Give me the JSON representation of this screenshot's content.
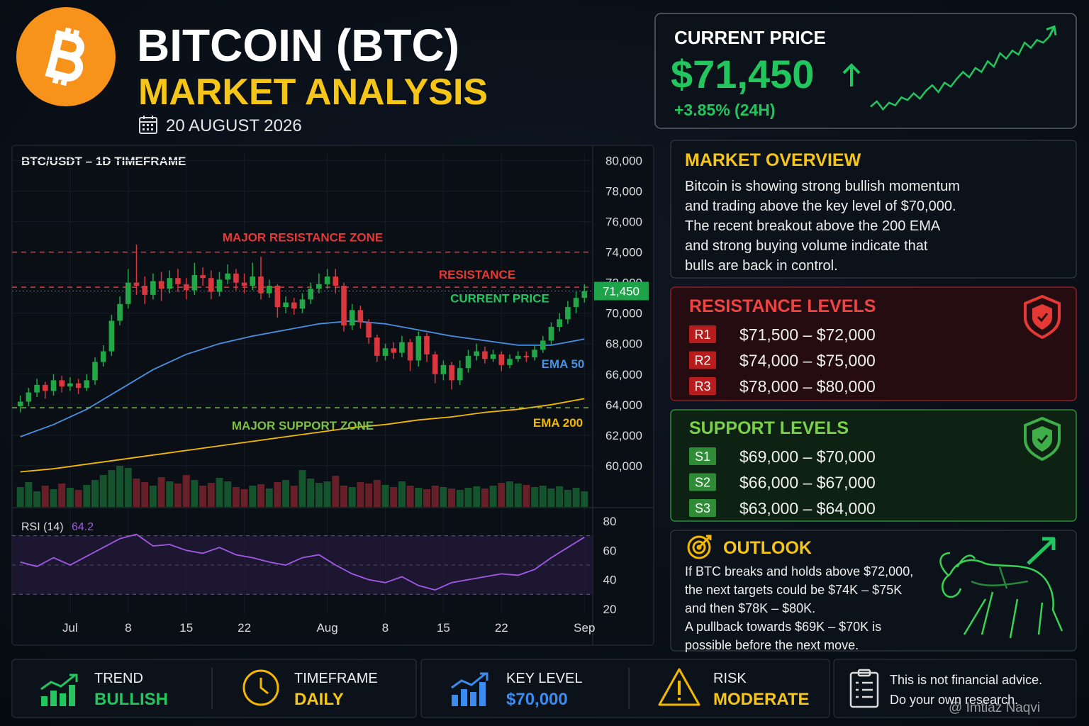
{
  "header": {
    "title": "BITCOIN (BTC)",
    "subtitle": "MARKET ANALYSIS",
    "date": "20 AUGUST 2026"
  },
  "price_card": {
    "label": "CURRENT PRICE",
    "price": "$71,450",
    "change": "+3.85% (24H)",
    "sparkline": {
      "values": [
        66200,
        66600,
        66000,
        66500,
        66300,
        66900,
        66700,
        67200,
        66800,
        67400,
        67800,
        67300,
        68000,
        67700,
        68300,
        68800,
        68400,
        69100,
        68800,
        69600,
        69200,
        70200,
        69800,
        70400,
        70100,
        71000,
        70600,
        71200,
        71000,
        71450
      ],
      "ylim": [
        65800,
        71800
      ],
      "color": "#22c55e"
    }
  },
  "chart_data": {
    "type": "candlestick",
    "title": "BTC/USDT – 1D TIMEFRAME",
    "x": [
      -6,
      -5,
      -4,
      -3,
      -2,
      -1,
      0,
      1,
      2,
      3,
      4,
      5,
      6,
      7,
      8,
      9,
      10,
      11,
      12,
      13,
      14,
      15,
      16,
      17,
      18,
      19,
      20,
      21,
      22,
      23,
      24,
      25,
      26,
      27,
      28,
      29,
      30,
      31,
      32,
      33,
      34,
      35,
      36,
      37,
      38,
      39,
      40,
      41,
      42,
      43,
      44,
      45,
      46,
      47,
      48,
      49,
      50,
      51,
      52,
      53,
      54,
      55,
      56,
      57,
      58,
      59,
      60,
      61,
      62
    ],
    "ohlc": [
      [
        63900,
        64600,
        63500,
        64200
      ],
      [
        64200,
        65100,
        63900,
        64800
      ],
      [
        64800,
        65700,
        64500,
        65300
      ],
      [
        65300,
        65500,
        64400,
        64900
      ],
      [
        64900,
        66000,
        64600,
        65600
      ],
      [
        65600,
        65900,
        64800,
        65200
      ],
      [
        65200,
        65800,
        64900,
        65400
      ],
      [
        65400,
        65700,
        64700,
        65100
      ],
      [
        65100,
        66000,
        64900,
        65600
      ],
      [
        65600,
        67100,
        65300,
        66800
      ],
      [
        66800,
        67900,
        66500,
        67500
      ],
      [
        67500,
        69900,
        67200,
        69500
      ],
      [
        69500,
        71100,
        69200,
        70600
      ],
      [
        70600,
        72900,
        70300,
        72000
      ],
      [
        72000,
        74500,
        71200,
        71800
      ],
      [
        71800,
        72400,
        70600,
        71200
      ],
      [
        71200,
        72600,
        70900,
        72100
      ],
      [
        72100,
        72700,
        70800,
        71600
      ],
      [
        71600,
        72800,
        71300,
        72300
      ],
      [
        72300,
        72900,
        71400,
        71900
      ],
      [
        71900,
        72300,
        70900,
        71500
      ],
      [
        71500,
        73300,
        71200,
        72500
      ],
      [
        72500,
        73000,
        71800,
        72300
      ],
      [
        72300,
        72800,
        70900,
        71400
      ],
      [
        71400,
        72700,
        71100,
        72200
      ],
      [
        72200,
        73200,
        71900,
        72600
      ],
      [
        72600,
        72900,
        71500,
        72000
      ],
      [
        72000,
        72600,
        71300,
        71800
      ],
      [
        71800,
        73300,
        71500,
        72400
      ],
      [
        72400,
        73700,
        70900,
        71300
      ],
      [
        71300,
        72200,
        71000,
        71800
      ],
      [
        71800,
        71900,
        69700,
        70400
      ],
      [
        70400,
        71100,
        70000,
        70700
      ],
      [
        70700,
        71000,
        69900,
        70300
      ],
      [
        70300,
        71300,
        70000,
        70900
      ],
      [
        70900,
        72000,
        70600,
        71600
      ],
      [
        71600,
        72600,
        71300,
        71900
      ],
      [
        71900,
        72900,
        71600,
        72400
      ],
      [
        72400,
        72900,
        71300,
        71800
      ],
      [
        71800,
        72000,
        68800,
        69200
      ],
      [
        69200,
        70600,
        68900,
        70200
      ],
      [
        70200,
        70500,
        69000,
        69400
      ],
      [
        69400,
        69600,
        68000,
        68400
      ],
      [
        68400,
        68600,
        66800,
        67200
      ],
      [
        67200,
        68000,
        66900,
        67700
      ],
      [
        67700,
        68100,
        67000,
        67400
      ],
      [
        67400,
        68500,
        67100,
        68100
      ],
      [
        68100,
        68300,
        66200,
        66900
      ],
      [
        66900,
        68800,
        66500,
        68500
      ],
      [
        68500,
        68700,
        66800,
        67300
      ],
      [
        67300,
        67500,
        65400,
        66000
      ],
      [
        66000,
        66900,
        65600,
        66600
      ],
      [
        66600,
        66800,
        65000,
        65600
      ],
      [
        65600,
        66900,
        65300,
        66400
      ],
      [
        66400,
        67600,
        66100,
        67200
      ],
      [
        67200,
        68000,
        66900,
        67500
      ],
      [
        67500,
        67800,
        66700,
        67000
      ],
      [
        67000,
        67600,
        66800,
        67300
      ],
      [
        67300,
        67500,
        66200,
        66600
      ],
      [
        66600,
        67300,
        66400,
        67000
      ],
      [
        67000,
        67500,
        66800,
        67200
      ],
      [
        67200,
        67500,
        66800,
        67100
      ],
      [
        67100,
        67900,
        66900,
        67600
      ],
      [
        67600,
        68500,
        67400,
        68200
      ],
      [
        68200,
        69400,
        67900,
        69100
      ],
      [
        69100,
        70000,
        68800,
        69600
      ],
      [
        69600,
        70800,
        69300,
        70400
      ],
      [
        70400,
        71400,
        70000,
        71000
      ],
      [
        71000,
        71900,
        70700,
        71450
      ]
    ],
    "up_color": "#22a746",
    "down_color": "#d9363e",
    "volume": [
      28,
      35,
      22,
      30,
      25,
      33,
      27,
      24,
      31,
      38,
      45,
      52,
      58,
      55,
      40,
      35,
      30,
      42,
      36,
      33,
      45,
      38,
      30,
      34,
      41,
      36,
      28,
      25,
      30,
      32,
      26,
      35,
      38,
      30,
      52,
      40,
      34,
      36,
      44,
      30,
      28,
      35,
      33,
      38,
      31,
      28,
      36,
      30,
      27,
      25,
      30,
      28,
      26,
      24,
      27,
      29,
      26,
      30,
      34,
      36,
      33,
      31,
      28,
      30,
      26,
      29,
      24,
      27,
      22
    ],
    "vlim": [
      0,
      100
    ],
    "ema": [
      {
        "name": "EMA 50",
        "color": "#4a90e2",
        "x": [
          -6,
          -2,
          2,
          6,
          10,
          14,
          18,
          22,
          26,
          30,
          34,
          38,
          42,
          46,
          50,
          54,
          58,
          62
        ],
        "values": [
          61900,
          62700,
          63700,
          65000,
          66300,
          67300,
          68000,
          68500,
          68900,
          69300,
          69500,
          69300,
          68900,
          68500,
          68200,
          67900,
          67900,
          68300
        ]
      },
      {
        "name": "EMA 200",
        "color": "#f5b800",
        "x": [
          -6,
          -2,
          2,
          6,
          10,
          14,
          18,
          22,
          26,
          30,
          34,
          38,
          42,
          46,
          50,
          54,
          58,
          62
        ],
        "values": [
          59600,
          59800,
          60100,
          60400,
          60700,
          61000,
          61300,
          61600,
          61900,
          62200,
          62500,
          62700,
          63000,
          63200,
          63500,
          63700,
          64000,
          64400
        ]
      }
    ],
    "levels": [
      {
        "name": "MAJOR RESISTANCE ZONE",
        "value": 74000,
        "color": "#e53935"
      },
      {
        "name": "RESISTANCE",
        "value": 71700,
        "color": "#e53935"
      },
      {
        "name": "MAJOR SUPPORT ZONE",
        "value": 63800,
        "color": "#7cc242"
      }
    ],
    "current_price": {
      "name": "CURRENT PRICE",
      "value": 71450,
      "label": "71,450",
      "color": "#22c55e"
    },
    "xlim": [
      -7,
      63
    ],
    "xticks": [
      {
        "value": 0,
        "label": "Jul"
      },
      {
        "value": 7,
        "label": "8"
      },
      {
        "value": 14,
        "label": "15"
      },
      {
        "value": 21,
        "label": "22"
      },
      {
        "value": 31,
        "label": "Aug"
      },
      {
        "value": 38,
        "label": "8"
      },
      {
        "value": 45,
        "label": "15"
      },
      {
        "value": 52,
        "label": "22"
      },
      {
        "value": 62,
        "label": "Sep"
      }
    ],
    "ylim": [
      57300,
      81000
    ],
    "yticks": [
      {
        "value": 60000,
        "label": "60,000"
      },
      {
        "value": 62000,
        "label": "62,000"
      },
      {
        "value": 64000,
        "label": "64,000"
      },
      {
        "value": 66000,
        "label": "66,000"
      },
      {
        "value": 68000,
        "label": "68,000"
      },
      {
        "value": 70000,
        "label": "70,000"
      },
      {
        "value": 72000,
        "label": "72,000"
      },
      {
        "value": 74000,
        "label": "74,000"
      },
      {
        "value": 76000,
        "label": "76,000"
      },
      {
        "value": 78000,
        "label": "78,000"
      },
      {
        "value": 80000,
        "label": "80,000"
      }
    ],
    "grid": true,
    "rsi": {
      "name": "RSI (14)",
      "current": 64.2,
      "color": "#a259e6",
      "x": [
        -6,
        -4,
        -2,
        0,
        2,
        4,
        6,
        8,
        10,
        12,
        14,
        16,
        18,
        20,
        22,
        24,
        26,
        28,
        30,
        32,
        34,
        36,
        38,
        40,
        42,
        44,
        46,
        48,
        50,
        52,
        54,
        56,
        58,
        60,
        62
      ],
      "values": [
        52,
        49,
        55,
        50,
        56,
        62,
        68,
        71,
        63,
        64,
        60,
        58,
        62,
        57,
        55,
        52,
        50,
        55,
        57,
        50,
        44,
        40,
        38,
        42,
        36,
        33,
        38,
        40,
        42,
        44,
        43,
        47,
        55,
        62,
        69
      ],
      "ylim": [
        16.6,
        88.2
      ],
      "yticks": [
        20,
        40,
        60,
        80
      ],
      "levels": [
        30,
        50,
        70
      ]
    }
  },
  "overview": {
    "title": "MARKET OVERVIEW",
    "lines": [
      "Bitcoin is showing strong bullish momentum",
      "and trading above the key level of $70,000.",
      "The recent breakout above the 200 EMA",
      "and strong buying volume indicate that",
      "bulls are back in control."
    ]
  },
  "resistance": {
    "title": "RESISTANCE LEVELS",
    "levels": [
      {
        "badge": "R1",
        "range": "$71,500 – $72,000"
      },
      {
        "badge": "R2",
        "range": "$74,000 – $75,000"
      },
      {
        "badge": "R3",
        "range": "$78,000 – $80,000"
      }
    ]
  },
  "support": {
    "title": "SUPPORT LEVELS",
    "levels": [
      {
        "badge": "S1",
        "range": "$69,000 – $70,000"
      },
      {
        "badge": "S2",
        "range": "$66,000 – $67,000"
      },
      {
        "badge": "S3",
        "range": "$63,000 – $64,000"
      }
    ]
  },
  "outlook": {
    "title": "OUTLOOK",
    "lines": [
      "If BTC breaks and holds above $72,000,",
      "the next targets could be $74K – $75K",
      "and then $78K – $80K.",
      "A pullback towards $69K – $70K is",
      "possible before the next move."
    ]
  },
  "footer": {
    "items": [
      {
        "label": "TREND",
        "value": "BULLISH",
        "color": "#22c55e"
      },
      {
        "label": "TIMEFRAME",
        "value": "DAILY",
        "color": "#f5c518"
      },
      {
        "label": "KEY LEVEL",
        "value": "$70,000",
        "color": "#3b8bf0"
      },
      {
        "label": "RISK",
        "value": "MODERATE",
        "color": "#f5c518"
      }
    ],
    "disclaimer": [
      "This is not financial advice.",
      "Do your own research."
    ]
  },
  "watermark": "@ Imtiaz Naqvi"
}
